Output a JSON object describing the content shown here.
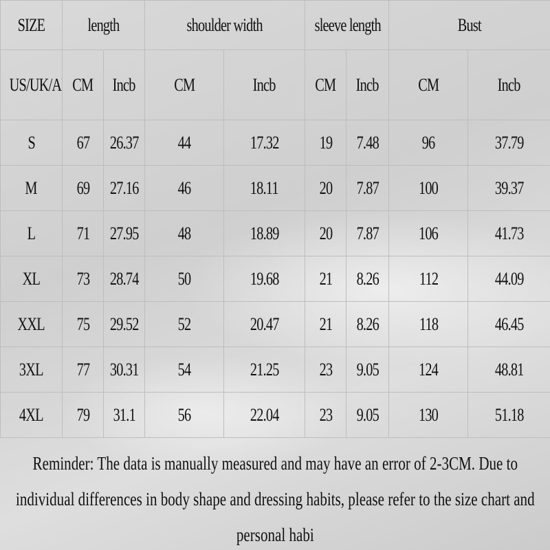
{
  "header": {
    "size": "SIZE",
    "length": "length",
    "shoulder_width": "shoulder width",
    "sleeve_length": "sleeve length",
    "bust": "Bust"
  },
  "units": [
    "US/UK/AU",
    "CM",
    "Incb",
    "CM",
    "Incb",
    "CM",
    "Incb",
    "CM",
    "Incb"
  ],
  "rows": [
    [
      "S",
      "67",
      "26.37",
      "44",
      "17.32",
      "19",
      "7.48",
      "96",
      "37.79"
    ],
    [
      "M",
      "69",
      "27.16",
      "46",
      "18.11",
      "20",
      "7.87",
      "100",
      "39.37"
    ],
    [
      "L",
      "71",
      "27.95",
      "48",
      "18.89",
      "20",
      "7.87",
      "106",
      "41.73"
    ],
    [
      "XL",
      "73",
      "28.74",
      "50",
      "19.68",
      "21",
      "8.26",
      "112",
      "44.09"
    ],
    [
      "XXL",
      "75",
      "29.52",
      "52",
      "20.47",
      "21",
      "8.26",
      "118",
      "46.45"
    ],
    [
      "3XL",
      "77",
      "30.31",
      "54",
      "21.25",
      "23",
      "9.05",
      "124",
      "48.81"
    ],
    [
      "4XL",
      "79",
      "31.1",
      "56",
      "22.04",
      "23",
      "9.05",
      "130",
      "51.18"
    ]
  ],
  "reminder": "Reminder: The data is manually measured and may have an error of 2-3CM. Due to individual differences in body shape and dressing habits, please refer to the size chart and personal habi"
}
